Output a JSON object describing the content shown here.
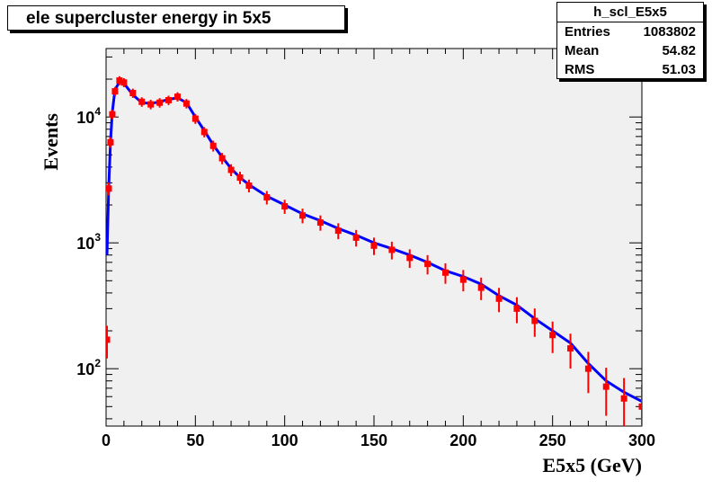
{
  "chart_data": {
    "type": "scatter",
    "title": "ele supercluster energy in 5x5",
    "xlabel": "E5x5 (GeV)",
    "ylabel": "Events",
    "xlim": [
      0,
      300
    ],
    "ylim": [
      35,
      35000
    ],
    "yscale": "log",
    "xticks": [
      "0",
      "50",
      "100",
      "150",
      "200",
      "250",
      "300"
    ],
    "yticks": [
      {
        "base": "10",
        "exp": "2",
        "value": 100
      },
      {
        "base": "10",
        "exp": "3",
        "value": 1000
      },
      {
        "base": "10",
        "exp": "4",
        "value": 10000
      }
    ],
    "grid": false,
    "stats_box": {
      "name": "h_scl_E5x5",
      "rows": [
        {
          "label": "Entries",
          "value": "1083802"
        },
        {
          "label": "Mean",
          "value": "54.82"
        },
        {
          "label": "RMS",
          "value": "51.03"
        }
      ]
    },
    "series": [
      {
        "color": "#0000ff",
        "style": "line",
        "x": [
          0.5,
          1.5,
          2.5,
          3.5,
          5,
          7.5,
          10,
          15,
          20,
          25,
          30,
          35,
          40,
          45,
          50,
          55,
          60,
          65,
          70,
          75,
          80,
          90,
          100,
          110,
          120,
          130,
          140,
          150,
          160,
          170,
          180,
          190,
          200,
          210,
          220,
          230,
          240,
          250,
          260,
          270,
          280,
          290,
          300
        ],
        "y": [
          800,
          2800,
          6500,
          11000,
          16500,
          19000,
          18500,
          15000,
          13000,
          12800,
          13200,
          13800,
          14200,
          13000,
          10000,
          7800,
          6000,
          4800,
          3900,
          3300,
          2900,
          2350,
          2000,
          1700,
          1500,
          1300,
          1150,
          1000,
          900,
          800,
          700,
          600,
          540,
          470,
          380,
          320,
          250,
          200,
          160,
          110,
          80,
          65,
          55
        ]
      },
      {
        "color": "#ff0000",
        "style": "points",
        "x": [
          0.5,
          1.5,
          2.5,
          3.5,
          5,
          7.5,
          10,
          15,
          20,
          25,
          30,
          35,
          40,
          45,
          50,
          55,
          60,
          65,
          70,
          75,
          80,
          90,
          100,
          110,
          120,
          130,
          140,
          150,
          160,
          170,
          180,
          190,
          200,
          210,
          220,
          230,
          240,
          250,
          260,
          270,
          280,
          290,
          300
        ],
        "y": [
          170,
          2700,
          6300,
          10500,
          16000,
          19500,
          18800,
          15500,
          13200,
          12600,
          13000,
          13600,
          14500,
          12800,
          9700,
          7600,
          5900,
          4700,
          3800,
          3300,
          2850,
          2300,
          1950,
          1650,
          1450,
          1250,
          1100,
          950,
          880,
          760,
          680,
          580,
          510,
          440,
          360,
          300,
          240,
          185,
          145,
          100,
          72,
          58,
          50
        ]
      }
    ]
  }
}
